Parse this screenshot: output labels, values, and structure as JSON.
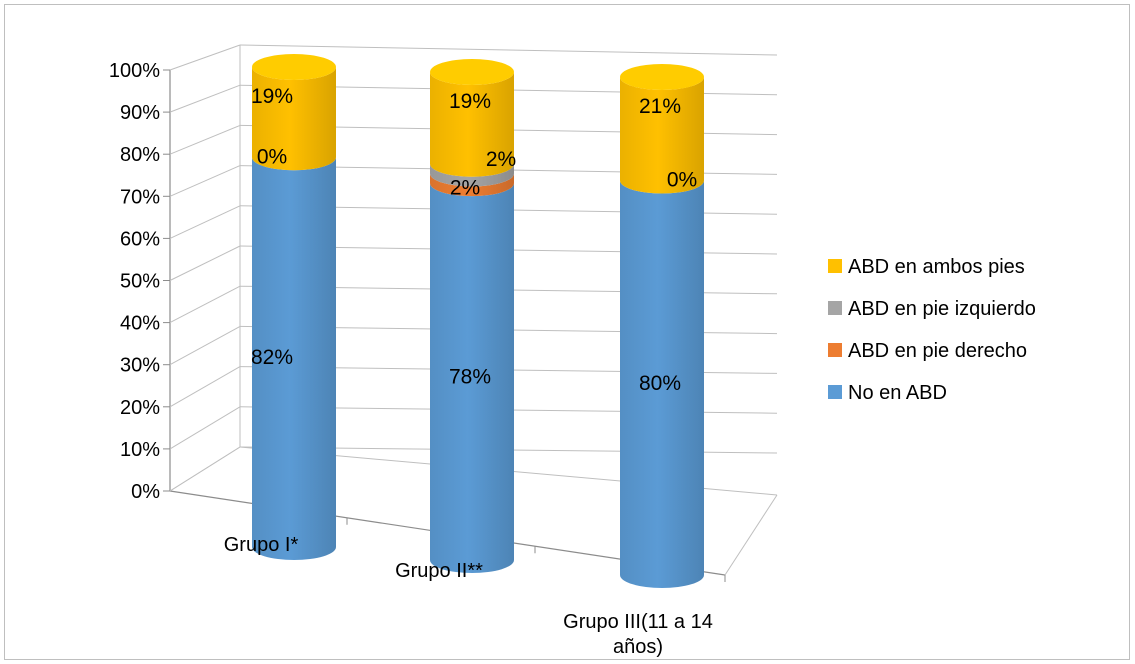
{
  "chart_data": {
    "type": "bar",
    "stacked": true,
    "percent_stacked": true,
    "three_d": true,
    "shape": "cylinder",
    "categories": [
      "Grupo I*",
      "Grupo II**",
      "Grupo III(11 a 14 años)"
    ],
    "category_lines": [
      [
        "Grupo I*"
      ],
      [
        "Grupo II**"
      ],
      [
        "Grupo III(11 a 14",
        "años)"
      ]
    ],
    "series": [
      {
        "name": "No en ABD",
        "color": "#5b9bd5",
        "values": [
          82,
          78,
          80
        ],
        "labels": [
          "82%",
          "78%",
          "80%"
        ]
      },
      {
        "name": "ABD en pie derecho",
        "color": "#ed7d31",
        "values": [
          0,
          2,
          0
        ],
        "labels": [
          "",
          "2%",
          ""
        ]
      },
      {
        "name": "ABD en pie izquierdo",
        "color": "#a5a5a5",
        "values": [
          0,
          2,
          0
        ],
        "labels": [
          "0%",
          "2%",
          "0%"
        ]
      },
      {
        "name": "ABD en ambos pies",
        "color": "#ffc000",
        "values": [
          19,
          19,
          21
        ],
        "labels": [
          "19%",
          "19%",
          "21%"
        ]
      }
    ],
    "y_ticks": [
      "0%",
      "10%",
      "20%",
      "30%",
      "40%",
      "50%",
      "60%",
      "70%",
      "80%",
      "90%",
      "100%"
    ],
    "ylim": [
      0,
      100
    ],
    "grid": true,
    "legend_position": "right",
    "legend_order": [
      "ABD en ambos pies",
      "ABD en pie izquierdo",
      "ABD en pie derecho",
      "No en ABD"
    ]
  }
}
